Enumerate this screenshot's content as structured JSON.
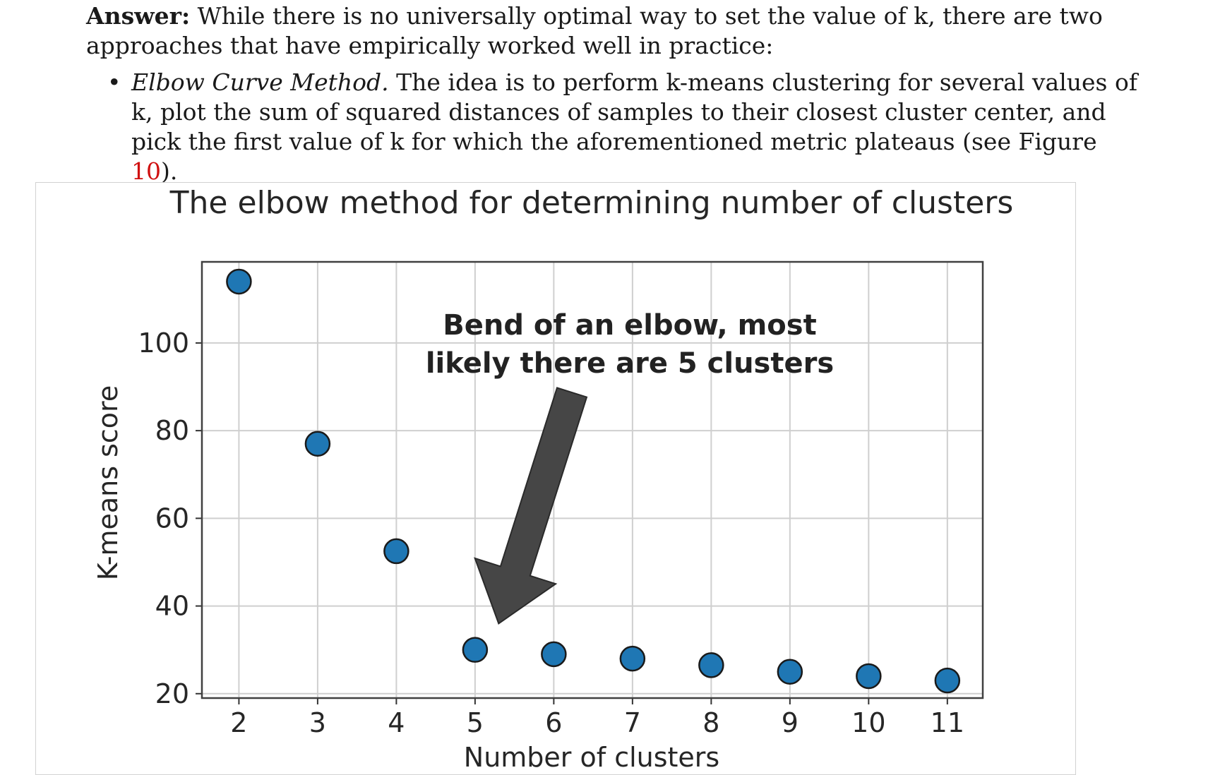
{
  "answer": {
    "label": "Answer:",
    "text": "While there is no universally optimal way to set the value of k, there are two approaches that have empirically worked well in practice:"
  },
  "bullets": [
    {
      "symbol": "•",
      "term": "Elbow Curve Method.",
      "text_before_ref": "The idea is to perform k-means clustering for several values of k, plot the sum of squared distances of samples to their closest cluster center, and pick the first value of k for which the aforementioned metric plateaus (see Figure",
      "ref": "10",
      "text_after_ref": ")."
    }
  ],
  "colors": {
    "marker_fill": "#1f77b4",
    "marker_edge": "#1a1a1a",
    "arrow": "#464646",
    "figure_ref": "#d01010"
  },
  "chart_data": {
    "type": "scatter",
    "title": "The elbow method for determining number of clusters",
    "xlabel": "Number of clusters",
    "ylabel": "K-means score",
    "x": [
      2,
      3,
      4,
      5,
      6,
      7,
      8,
      9,
      10,
      11
    ],
    "y": [
      114,
      77,
      52.5,
      30,
      29,
      28,
      26.5,
      25,
      24,
      23
    ],
    "xticks": [
      "2",
      "3",
      "4",
      "5",
      "6",
      "7",
      "8",
      "9",
      "10",
      "11"
    ],
    "yticks": [
      "20",
      "40",
      "60",
      "80",
      "100"
    ],
    "xlim": [
      1.53,
      11.45
    ],
    "ylim": [
      19,
      118.5
    ],
    "grid": true,
    "annotation": {
      "lines": [
        "Bend of an elbow, most",
        "likely there are 5 clusters"
      ],
      "arrow_target": {
        "x": 5.3,
        "y": 36
      }
    }
  }
}
